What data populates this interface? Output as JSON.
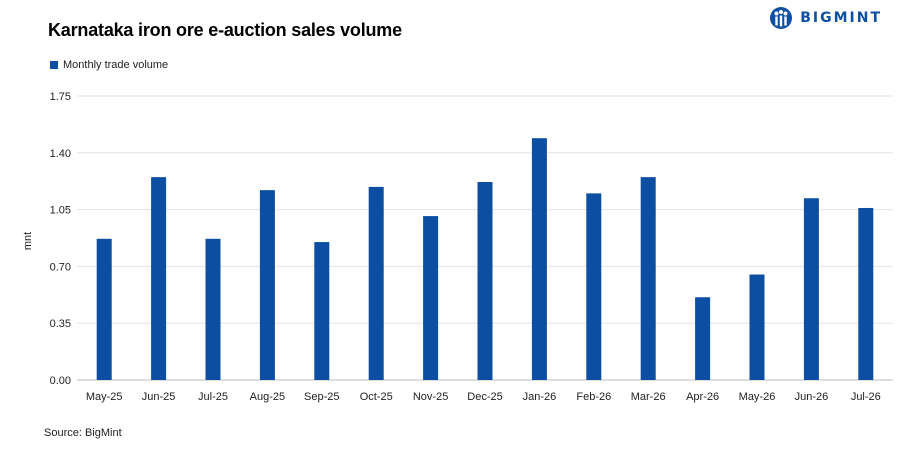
{
  "brand": {
    "name": "BIGMINT",
    "color": "#0d4fa3",
    "icon": "bigmint-logo-icon"
  },
  "source": "Source: BigMint",
  "chart_data": {
    "type": "bar",
    "title": "Karnataka iron ore e-auction sales volume",
    "ylabel": "mnt",
    "xlabel": "",
    "ylim": [
      0,
      1.75
    ],
    "yticks": [
      "0.00",
      "0.35",
      "0.70",
      "1.05",
      "1.40",
      "1.75"
    ],
    "grid": true,
    "legend_position": "top-left",
    "categories": [
      "May-25",
      "Jun-25",
      "Jul-25",
      "Aug-25",
      "Sep-25",
      "Oct-25",
      "Nov-25",
      "Dec-25",
      "Jan-26",
      "Feb-26",
      "Mar-26",
      "Apr-26",
      "May-26",
      "Jun-26",
      "Jul-26"
    ],
    "series": [
      {
        "name": "Monthly trade volume",
        "color": "#0b4ea2",
        "values": [
          0.87,
          1.25,
          0.87,
          1.17,
          0.85,
          1.19,
          1.01,
          1.22,
          1.49,
          1.15,
          1.25,
          0.51,
          0.65,
          1.12,
          1.06
        ]
      }
    ]
  }
}
